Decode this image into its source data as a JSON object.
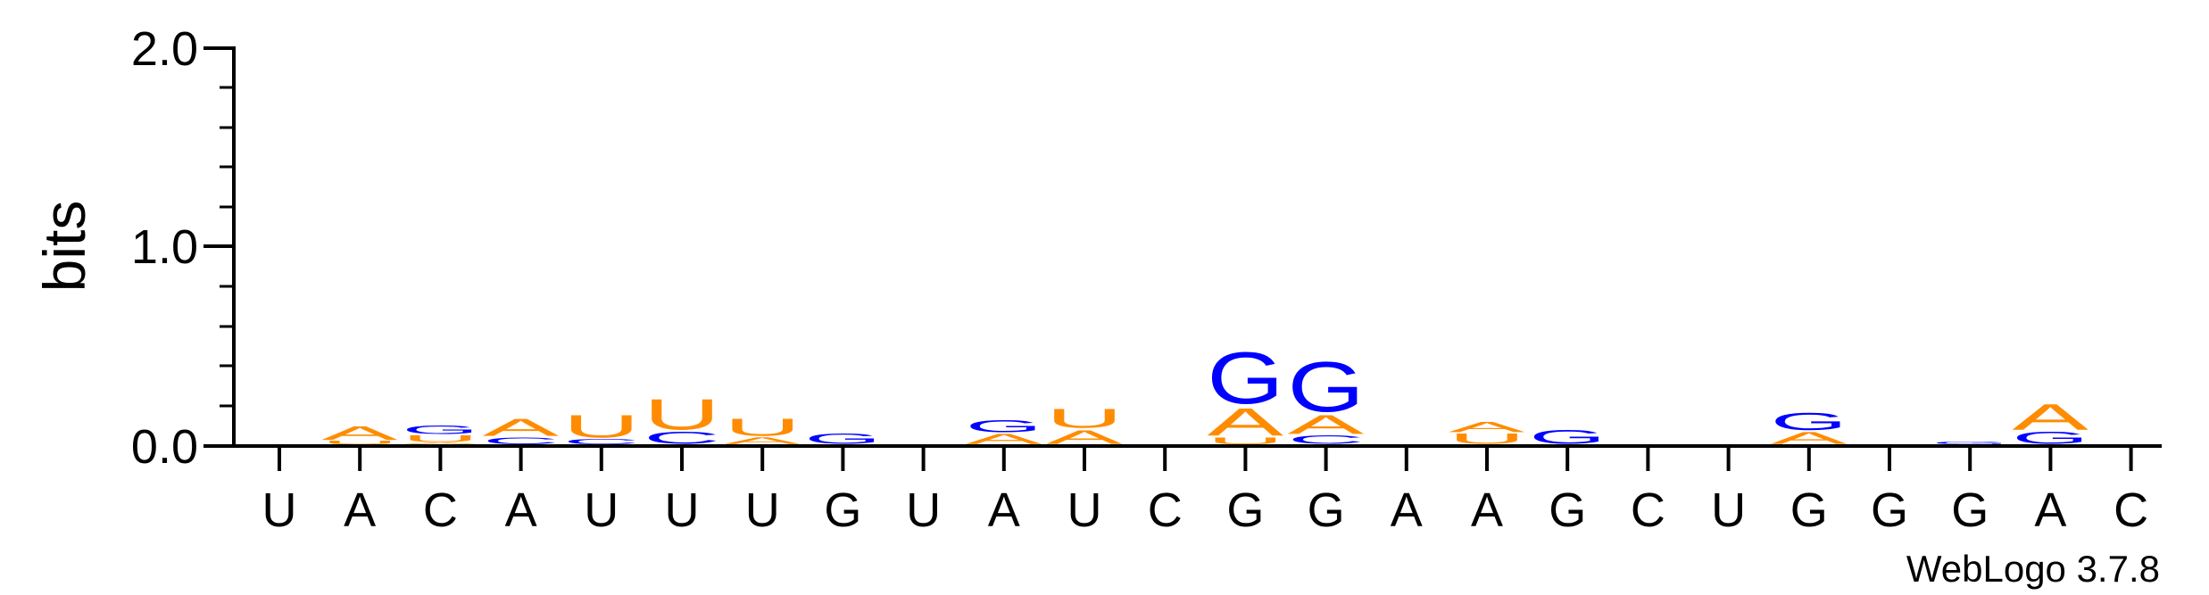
{
  "chart_data": {
    "type": "sequence-logo",
    "ylabel": "bits",
    "ylim": [
      0,
      2.0
    ],
    "yticks": [
      "0.0",
      "1.0",
      "2.0"
    ],
    "credit": "WebLogo 3.7.8",
    "colors": {
      "A": "#FF8C00",
      "U": "#FF8C00",
      "G": "#0000FF",
      "C": "#0000FF"
    },
    "positions": [
      {
        "label": "U",
        "stack": []
      },
      {
        "label": "A",
        "stack": [
          [
            "U",
            0.02
          ],
          [
            "A",
            0.08
          ]
        ]
      },
      {
        "label": "C",
        "stack": [
          [
            "A",
            0.01
          ],
          [
            "U",
            0.04
          ],
          [
            "G",
            0.05
          ]
        ]
      },
      {
        "label": "A",
        "stack": [
          [
            "C",
            0.04
          ],
          [
            "A",
            0.1
          ]
        ]
      },
      {
        "label": "U",
        "stack": [
          [
            "C",
            0.03
          ],
          [
            "U",
            0.13
          ]
        ]
      },
      {
        "label": "U",
        "stack": [
          [
            "C",
            0.07
          ],
          [
            "U",
            0.18
          ]
        ]
      },
      {
        "label": "U",
        "stack": [
          [
            "A",
            0.04
          ],
          [
            "U",
            0.1
          ]
        ]
      },
      {
        "label": "G",
        "stack": [
          [
            "G",
            0.06
          ]
        ]
      },
      {
        "label": "U",
        "stack": []
      },
      {
        "label": "A",
        "stack": [
          [
            "A",
            0.06
          ],
          [
            "G",
            0.07
          ]
        ]
      },
      {
        "label": "U",
        "stack": [
          [
            "A",
            0.08
          ],
          [
            "U",
            0.11
          ]
        ]
      },
      {
        "label": "C",
        "stack": []
      },
      {
        "label": "G",
        "stack": [
          [
            "U",
            0.04
          ],
          [
            "A",
            0.16
          ],
          [
            "G",
            0.3
          ]
        ]
      },
      {
        "label": "G",
        "stack": [
          [
            "C",
            0.05
          ],
          [
            "A",
            0.11
          ],
          [
            "G",
            0.29
          ]
        ]
      },
      {
        "label": "A",
        "stack": []
      },
      {
        "label": "A",
        "stack": [
          [
            "U",
            0.06
          ],
          [
            "A",
            0.06
          ]
        ]
      },
      {
        "label": "G",
        "stack": [
          [
            "G",
            0.08
          ]
        ]
      },
      {
        "label": "C",
        "stack": []
      },
      {
        "label": "U",
        "stack": []
      },
      {
        "label": "G",
        "stack": [
          [
            "A",
            0.07
          ],
          [
            "G",
            0.1
          ]
        ]
      },
      {
        "label": "G",
        "stack": []
      },
      {
        "label": "G",
        "stack": [
          [
            "G",
            0.015
          ]
        ]
      },
      {
        "label": "A",
        "stack": [
          [
            "G",
            0.07
          ],
          [
            "A",
            0.15
          ]
        ]
      },
      {
        "label": "C",
        "stack": []
      }
    ]
  }
}
